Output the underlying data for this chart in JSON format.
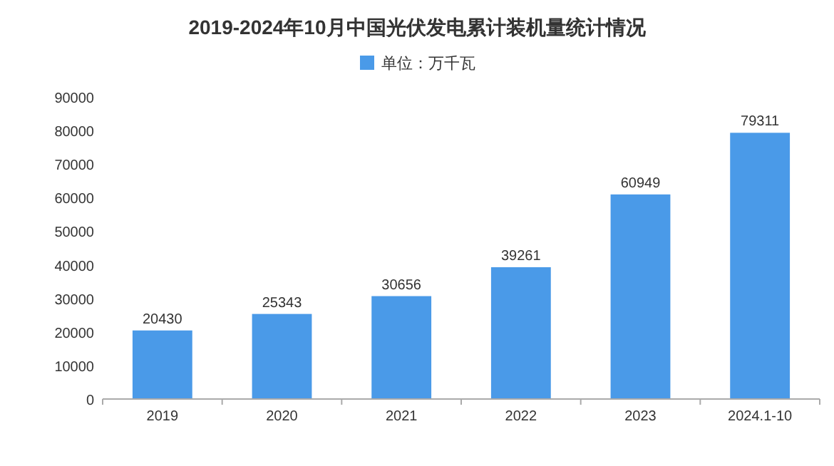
{
  "chart_data": {
    "type": "bar",
    "title": "2019-2024年10月中国光伏发电累计装机量统计情况",
    "categories": [
      "2019",
      "2020",
      "2021",
      "2022",
      "2023",
      "2024.1-10"
    ],
    "series": [
      {
        "name": "单位：万千瓦",
        "color": "#4a9ae8",
        "values": [
          20430,
          25343,
          30656,
          39261,
          60949,
          79311
        ]
      }
    ],
    "ylim": [
      0,
      90000
    ],
    "yticks": [
      0,
      10000,
      20000,
      30000,
      40000,
      50000,
      60000,
      70000,
      80000,
      90000
    ],
    "data_labels": true,
    "legend": "top"
  }
}
